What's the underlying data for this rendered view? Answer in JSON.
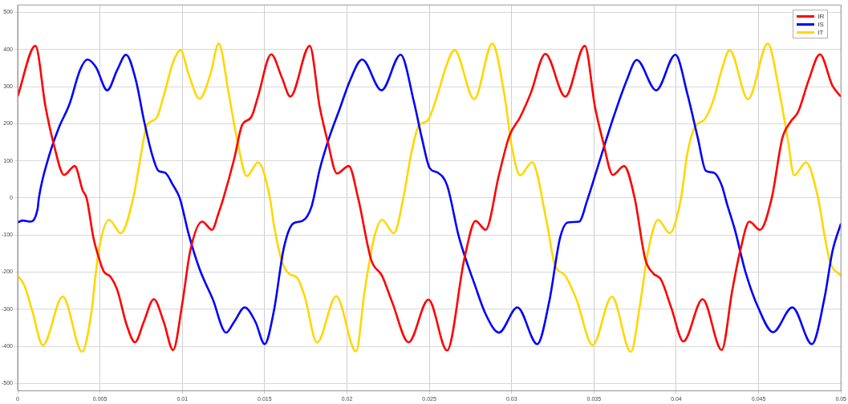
{
  "chart_data": {
    "type": "line",
    "xlim": [
      0,
      0.05
    ],
    "ylim": [
      -520,
      520
    ],
    "xticks": [
      0,
      0.005,
      0.01,
      0.015,
      0.02,
      0.025,
      0.03,
      0.035,
      0.04,
      0.045,
      0.05
    ],
    "yticks": [
      -500,
      -400,
      -300,
      -200,
      -100,
      0,
      100,
      200,
      300,
      400,
      500
    ],
    "grid": true,
    "legend": "top right",
    "marker": "none",
    "line_style": "solid",
    "series": [
      {
        "name": "IR",
        "color": "#ff0000",
        "x": [
          0,
          0.00108,
          0.00169,
          0.00218,
          0.00282,
          0.00347,
          0.00395,
          0.00419,
          0.0046,
          0.005,
          0.00524,
          0.00565,
          0.00605,
          0.00661,
          0.00713,
          0.00766,
          0.00827,
          0.00887,
          0.00944,
          0.01,
          0.01048,
          0.01121,
          0.01181,
          0.01218,
          0.0125,
          0.01315,
          0.01363,
          0.01419,
          0.0146,
          0.0154,
          0.01605,
          0.01656,
          0.01774,
          0.01834,
          0.01882,
          0.01939,
          0.02011,
          0.02068,
          0.02148,
          0.02213,
          0.02277,
          0.02374,
          0.02495,
          0.02608,
          0.02713,
          0.02781,
          0.02842,
          0.02923,
          0.02987,
          0.03052,
          0.03116,
          0.03205,
          0.03326,
          0.03445,
          0.03506,
          0.03554,
          0.03615,
          0.03683,
          0.03747,
          0.03811,
          0.03859,
          0.03907,
          0.03971,
          0.04043,
          0.0416,
          0.04276,
          0.0434,
          0.04388,
          0.04444,
          0.04508,
          0.0458,
          0.04644,
          0.04692,
          0.0474,
          0.04804,
          0.04872,
          0.04949,
          0.05
        ],
        "values": [
          274,
          410,
          246,
          147,
          62,
          86,
          20,
          -1,
          -107,
          -171,
          -199,
          -213,
          -248,
          -341,
          -389,
          -334,
          -273,
          -334,
          -410,
          -284,
          -143,
          -64,
          -86,
          -44,
          0,
          105,
          196,
          218,
          274,
          387,
          324,
          273,
          410,
          246,
          154,
          66,
          86,
          -1,
          -168,
          -210,
          -284,
          -389,
          -274,
          -411,
          -164,
          -62,
          -86,
          62,
          168,
          218,
          282,
          388,
          273,
          410,
          246,
          154,
          62,
          86,
          0,
          -164,
          -203,
          -220,
          -298,
          -387,
          -273,
          -410,
          -249,
          -143,
          -64,
          -86,
          0,
          161,
          204,
          232,
          317,
          387,
          302,
          273
        ]
      },
      {
        "name": "IS",
        "color": "#0000ff",
        "x": [
          0,
          0.00032,
          0.00073,
          0.00121,
          0.00129,
          0.00185,
          0.0025,
          0.00315,
          0.00379,
          0.00424,
          0.00476,
          0.00544,
          0.00605,
          0.00658,
          0.00718,
          0.00766,
          0.00815,
          0.00855,
          0.00895,
          0.00944,
          0.00984,
          0.0104,
          0.01105,
          0.01185,
          0.01266,
          0.01315,
          0.01379,
          0.01444,
          0.015,
          0.01556,
          0.01616,
          0.01673,
          0.01729,
          0.01785,
          0.01834,
          0.01891,
          0.01955,
          0.02019,
          0.02092,
          0.0221,
          0.02326,
          0.02406,
          0.02455,
          0.02503,
          0.02552,
          0.02608,
          0.02681,
          0.02777,
          0.02842,
          0.02923,
          0.03035,
          0.03156,
          0.03229,
          0.03294,
          0.03342,
          0.0341,
          0.03458,
          0.03538,
          0.03619,
          0.03699,
          0.0376,
          0.03878,
          0.03995,
          0.04067,
          0.04131,
          0.0418,
          0.04228,
          0.04276,
          0.04308,
          0.04356,
          0.0442,
          0.045,
          0.04588,
          0.04705,
          0.04824,
          0.049,
          0.04949,
          0.05
        ],
        "values": [
          -66,
          -61,
          -64,
          -30,
          0,
          105,
          189,
          253,
          345,
          373,
          352,
          290,
          345,
          386,
          317,
          211,
          119,
          73,
          68,
          34,
          0,
          -100,
          -192,
          -273,
          -363,
          -334,
          -295,
          -334,
          -394,
          -305,
          -136,
          -69,
          -62,
          -23,
          76,
          161,
          239,
          317,
          373,
          290,
          386,
          260,
          161,
          80,
          68,
          34,
          -107,
          -235,
          -313,
          -363,
          -295,
          -394,
          -278,
          -108,
          -66,
          -64,
          -8,
          105,
          218,
          317,
          372,
          290,
          386,
          281,
          161,
          73,
          68,
          34,
          -16,
          -86,
          -199,
          -298,
          -362,
          -295,
          -394,
          -270,
          -143,
          -69
        ]
      },
      {
        "name": "IT",
        "color": "#ffd700",
        "x": [
          0,
          0.0004,
          0.00089,
          0.00153,
          0.00274,
          0.00392,
          0.00444,
          0.00492,
          0.00556,
          0.00626,
          0.00702,
          0.0075,
          0.00782,
          0.00815,
          0.00847,
          0.00895,
          0.00944,
          0.00989,
          0.0104,
          0.01105,
          0.01169,
          0.01221,
          0.01282,
          0.01331,
          0.01392,
          0.0146,
          0.01532,
          0.01556,
          0.01605,
          0.0165,
          0.01697,
          0.01745,
          0.01818,
          0.01935,
          0.02055,
          0.02108,
          0.02165,
          0.02213,
          0.02285,
          0.02342,
          0.0239,
          0.02439,
          0.02487,
          0.02552,
          0.026,
          0.02653,
          0.02773,
          0.02883,
          0.02955,
          0.03003,
          0.03052,
          0.03124,
          0.03213,
          0.03261,
          0.03326,
          0.03394,
          0.03492,
          0.03609,
          0.03724,
          0.03781,
          0.03829,
          0.0389,
          0.0396,
          0.04029,
          0.04067,
          0.04115,
          0.04171,
          0.04228,
          0.04276,
          0.04324,
          0.04436,
          0.04556,
          0.04628,
          0.04676,
          0.04716,
          0.04788,
          0.04861,
          0.049,
          0.04933,
          0.05
        ],
        "values": [
          -210,
          -235,
          -305,
          -397,
          -266,
          -415,
          -320,
          -143,
          -59,
          -95,
          0,
          119,
          193,
          207,
          218,
          288,
          366,
          398,
          331,
          267,
          331,
          416,
          281,
          161,
          59,
          96,
          0,
          -72,
          -171,
          -205,
          -215,
          -268,
          -390,
          -265,
          -414,
          -249,
          -107,
          -59,
          -95,
          -1,
          119,
          197,
          207,
          281,
          352,
          398,
          266,
          416,
          281,
          133,
          61,
          96,
          -65,
          -178,
          -210,
          -274,
          -397,
          -266,
          -415,
          -284,
          -143,
          -59,
          -95,
          0,
          119,
          193,
          211,
          267,
          345,
          398,
          266,
          416,
          281,
          161,
          61,
          96,
          0,
          -100,
          -171,
          -210
        ]
      }
    ]
  }
}
